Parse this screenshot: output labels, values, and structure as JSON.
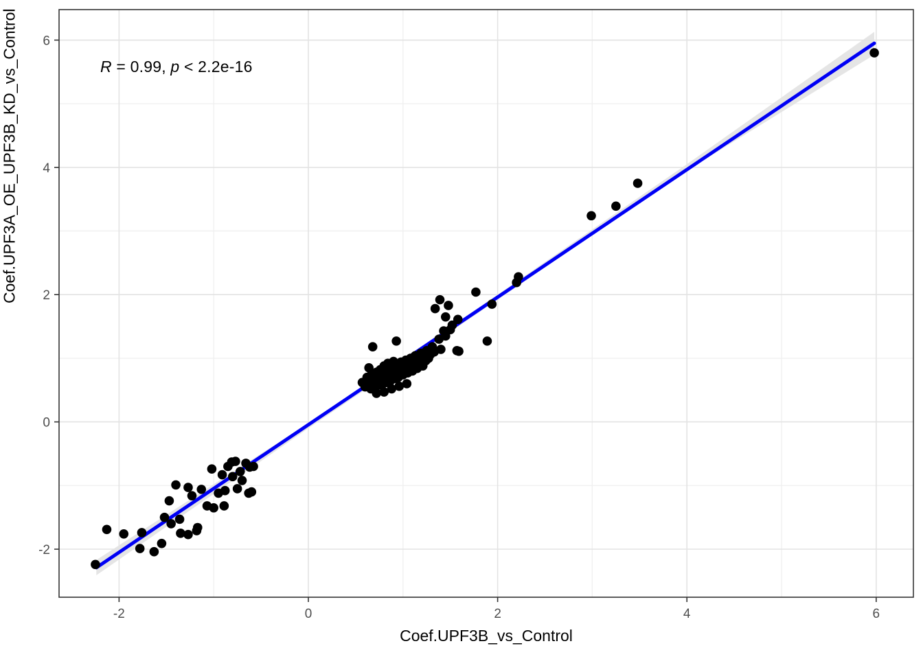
{
  "chart_data": {
    "type": "scatter",
    "title": "",
    "xlabel": "Coef.UPF3B_vs_Control",
    "ylabel": "Coef.UPF3A_OE_UPF3B_KD_vs_Control",
    "annotation": {
      "r_symbol": "R",
      "r_text": " = 0.99, ",
      "p_symbol": "p",
      "p_text": " < 2.2e-16"
    },
    "xlim": [
      -2.634,
      6.393
    ],
    "ylim": [
      -2.755,
      6.479
    ],
    "xticks": [
      -2,
      0,
      2,
      4,
      6
    ],
    "yticks": [
      -2,
      0,
      2,
      4,
      6
    ],
    "xticks_minor": [
      -1,
      1,
      3,
      5
    ],
    "yticks_minor": [
      -1,
      1,
      3,
      5
    ],
    "grid": true,
    "legend": "none",
    "point_color": "#000000",
    "point_radius": 6.8,
    "line_color": "#0000f5",
    "line_width": 5,
    "ribbon_color": "#e2e2e2",
    "panel_border_color": "#333333",
    "grid_major_color": "#e3e3e3",
    "grid_minor_color": "#f0f0f0",
    "tick_color": "#333333",
    "tick_label_color": "#4d4d4d",
    "regression_line": {
      "x1": -2.24,
      "y1": -2.29,
      "x2": 5.98,
      "y2": 5.95
    },
    "ribbon": {
      "upper": [
        [
          -2.24,
          -2.17
        ],
        [
          0,
          -0.02
        ],
        [
          2,
          2.0
        ],
        [
          4,
          4.05
        ],
        [
          5.98,
          6.13
        ]
      ],
      "lower": [
        [
          -2.24,
          -2.41
        ],
        [
          0,
          -0.1
        ],
        [
          2,
          1.92
        ],
        [
          4,
          3.95
        ],
        [
          5.98,
          5.77
        ]
      ]
    },
    "points": [
      [
        -2.25,
        -2.24
      ],
      [
        -2.13,
        -1.69
      ],
      [
        -1.95,
        -1.76
      ],
      [
        -1.76,
        -1.74
      ],
      [
        -1.78,
        -1.99
      ],
      [
        -1.63,
        -2.04
      ],
      [
        -1.55,
        -1.91
      ],
      [
        -1.52,
        -1.5
      ],
      [
        -1.47,
        -1.24
      ],
      [
        -1.36,
        -1.53
      ],
      [
        -1.35,
        -1.75
      ],
      [
        -1.27,
        -1.77
      ],
      [
        -1.18,
        -1.71
      ],
      [
        -1.17,
        -1.66
      ],
      [
        -1.4,
        -0.99
      ],
      [
        -1.27,
        -1.03
      ],
      [
        -1.23,
        -1.16
      ],
      [
        -1.13,
        -1.06
      ],
      [
        -1.07,
        -1.32
      ],
      [
        -1.02,
        -0.74
      ],
      [
        -0.91,
        -0.83
      ],
      [
        -0.88,
        -1.08
      ],
      [
        -0.81,
        -0.63
      ],
      [
        -0.77,
        -0.62
      ],
      [
        -0.75,
        -1.05
      ],
      [
        -0.66,
        -0.65
      ],
      [
        -0.63,
        -1.12
      ],
      [
        -0.89,
        -1.32
      ],
      [
        -1.0,
        -1.35
      ],
      [
        -0.72,
        -0.78
      ],
      [
        -0.8,
        -0.86
      ],
      [
        -0.7,
        -0.92
      ],
      [
        -0.85,
        -0.7
      ],
      [
        -0.62,
        -0.71
      ],
      [
        -0.95,
        -1.12
      ],
      [
        -1.45,
        -1.6
      ],
      [
        -0.58,
        -0.7
      ],
      [
        -0.6,
        -1.1
      ],
      [
        0.57,
        0.62
      ],
      [
        0.6,
        0.55
      ],
      [
        0.62,
        0.7
      ],
      [
        0.63,
        0.58
      ],
      [
        0.65,
        0.65
      ],
      [
        0.66,
        0.52
      ],
      [
        0.67,
        0.75
      ],
      [
        0.68,
        0.6
      ],
      [
        0.7,
        0.68
      ],
      [
        0.71,
        0.55
      ],
      [
        0.72,
        0.78
      ],
      [
        0.73,
        0.63
      ],
      [
        0.74,
        0.7
      ],
      [
        0.75,
        0.58
      ],
      [
        0.76,
        0.82
      ],
      [
        0.77,
        0.66
      ],
      [
        0.78,
        0.73
      ],
      [
        0.79,
        0.6
      ],
      [
        0.8,
        0.88
      ],
      [
        0.81,
        0.68
      ],
      [
        0.82,
        0.76
      ],
      [
        0.83,
        0.62
      ],
      [
        0.84,
        0.92
      ],
      [
        0.85,
        0.71
      ],
      [
        0.86,
        0.8
      ],
      [
        0.87,
        0.65
      ],
      [
        0.88,
        0.85
      ],
      [
        0.89,
        0.74
      ],
      [
        0.9,
        0.95
      ],
      [
        0.91,
        0.68
      ],
      [
        0.92,
        0.82
      ],
      [
        0.93,
        0.76
      ],
      [
        0.94,
        0.9
      ],
      [
        0.95,
        0.7
      ],
      [
        0.96,
        0.85
      ],
      [
        0.97,
        0.79
      ],
      [
        0.98,
        0.94
      ],
      [
        1.0,
        0.74
      ],
      [
        1.01,
        0.88
      ],
      [
        1.02,
        0.81
      ],
      [
        1.03,
        0.97
      ],
      [
        1.05,
        0.77
      ],
      [
        1.06,
        0.91
      ],
      [
        1.07,
        0.85
      ],
      [
        1.08,
        1.0
      ],
      [
        1.1,
        0.8
      ],
      [
        1.11,
        0.95
      ],
      [
        1.12,
        0.88
      ],
      [
        1.13,
        1.04
      ],
      [
        1.15,
        0.84
      ],
      [
        1.16,
        0.98
      ],
      [
        1.18,
        0.92
      ],
      [
        1.19,
        1.08
      ],
      [
        1.21,
        0.88
      ],
      [
        1.22,
        1.02
      ],
      [
        1.24,
        0.96
      ],
      [
        1.25,
        1.12
      ],
      [
        1.27,
        1.0
      ],
      [
        1.29,
        1.06
      ],
      [
        1.31,
        1.18
      ],
      [
        1.33,
        1.1
      ],
      [
        0.68,
        1.18
      ],
      [
        0.93,
        1.27
      ],
      [
        1.34,
        1.78
      ],
      [
        1.39,
        1.92
      ],
      [
        1.48,
        1.83
      ],
      [
        1.77,
        2.04
      ],
      [
        1.94,
        1.85
      ],
      [
        1.52,
        1.52
      ],
      [
        1.58,
        1.61
      ],
      [
        1.43,
        1.43
      ],
      [
        1.45,
        1.65
      ],
      [
        1.59,
        1.11
      ],
      [
        1.89,
        1.27
      ],
      [
        1.4,
        1.14
      ],
      [
        1.57,
        1.12
      ],
      [
        1.38,
        1.3
      ],
      [
        1.45,
        1.35
      ],
      [
        1.5,
        1.45
      ],
      [
        0.72,
        0.45
      ],
      [
        0.8,
        0.47
      ],
      [
        0.88,
        0.52
      ],
      [
        0.96,
        0.56
      ],
      [
        1.04,
        0.6
      ],
      [
        0.64,
        0.85
      ],
      [
        2.2,
        2.19
      ],
      [
        2.22,
        2.28
      ],
      [
        2.99,
        3.24
      ],
      [
        3.25,
        3.39
      ],
      [
        3.48,
        3.75
      ],
      [
        5.98,
        5.8
      ]
    ]
  }
}
